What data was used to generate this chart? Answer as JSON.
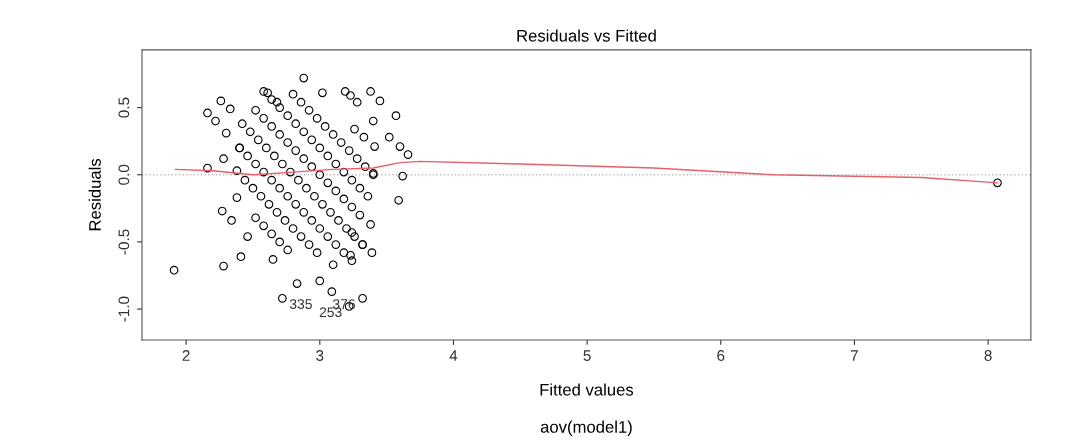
{
  "chart_data": {
    "type": "scatter",
    "title": "Residuals vs Fitted",
    "xlabel": "Fitted values",
    "ylabel": "Residuals",
    "xlim": [
      1.67,
      8.32
    ],
    "ylim": [
      -1.23,
      0.93
    ],
    "xticks": [
      2,
      3,
      4,
      5,
      6,
      7,
      8
    ],
    "yticks": [
      {
        "value": -1.0,
        "label": "-1.0"
      },
      {
        "value": -0.5,
        "label": "-0.5"
      },
      {
        "value": 0.0,
        "label": "0.0"
      },
      {
        "value": 0.5,
        "label": "0.5"
      }
    ],
    "series": [
      {
        "marker": "circle",
        "color": "#000000",
        "x": [
          2.8,
          2.86,
          2.92,
          2.98,
          3.04,
          3.1,
          3.16,
          3.22,
          3.28,
          3.34,
          3.4,
          2.58,
          2.64,
          2.7,
          2.76,
          2.82,
          2.88,
          2.94,
          3.0,
          3.06,
          3.12,
          3.18,
          3.24,
          3.3,
          3.36,
          2.52,
          2.58,
          2.64,
          2.7,
          2.76,
          2.82,
          2.88,
          2.94,
          3.0,
          3.06,
          3.12,
          3.18,
          3.24,
          3.3,
          2.42,
          2.48,
          2.54,
          2.6,
          2.66,
          2.72,
          2.78,
          2.84,
          2.9,
          2.96,
          3.02,
          3.08,
          3.14,
          3.2,
          3.26,
          3.32,
          2.4,
          2.46,
          2.52,
          2.58,
          2.64,
          2.7,
          2.76,
          2.82,
          2.88,
          2.94,
          3.0,
          3.06,
          3.12,
          3.18,
          3.24,
          2.44,
          2.5,
          2.56,
          2.62,
          2.68,
          2.74,
          2.8,
          2.86,
          2.92,
          2.98,
          2.52,
          2.58,
          2.64,
          2.7,
          2.76,
          2.88,
          2.26,
          2.33,
          2.16,
          2.22,
          2.3,
          2.28,
          2.16,
          2.38,
          2.4,
          2.27,
          2.34,
          2.46,
          2.38,
          1.91,
          2.28,
          2.41,
          2.65,
          2.83,
          3.0,
          3.09,
          3.1,
          2.72,
          3.32,
          3.22,
          3.02,
          3.19,
          3.23,
          3.28,
          3.38,
          3.45,
          3.57,
          3.4,
          3.52,
          3.6,
          3.66,
          3.62,
          3.59,
          3.41,
          3.4,
          3.38,
          3.39,
          3.32,
          3.24,
          3.23,
          2.61,
          2.68,
          3.26,
          3.33,
          8.07
        ],
        "values": [
          0.6,
          0.54,
          0.48,
          0.42,
          0.36,
          0.3,
          0.24,
          0.18,
          0.12,
          0.06,
          0.0,
          0.62,
          0.56,
          0.5,
          0.44,
          0.38,
          0.32,
          0.26,
          0.2,
          0.14,
          0.08,
          0.02,
          -0.04,
          -0.1,
          -0.16,
          0.48,
          0.42,
          0.36,
          0.3,
          0.24,
          0.18,
          0.12,
          0.06,
          0.0,
          -0.06,
          -0.12,
          -0.18,
          -0.24,
          -0.3,
          0.38,
          0.32,
          0.26,
          0.2,
          0.14,
          0.08,
          0.02,
          -0.04,
          -0.1,
          -0.16,
          -0.22,
          -0.28,
          -0.34,
          -0.4,
          -0.46,
          -0.52,
          0.2,
          0.14,
          0.08,
          0.02,
          -0.04,
          -0.1,
          -0.16,
          -0.22,
          -0.28,
          -0.34,
          -0.4,
          -0.46,
          -0.52,
          -0.58,
          -0.64,
          -0.04,
          -0.1,
          -0.16,
          -0.22,
          -0.28,
          -0.34,
          -0.4,
          -0.46,
          -0.52,
          -0.58,
          -0.32,
          -0.38,
          -0.44,
          -0.5,
          -0.56,
          0.72,
          0.55,
          0.49,
          0.46,
          0.4,
          0.31,
          0.12,
          0.05,
          0.03,
          0.2,
          -0.27,
          -0.34,
          -0.46,
          -0.17,
          -0.71,
          -0.68,
          -0.61,
          -0.63,
          -0.81,
          -0.79,
          -0.87,
          -0.67,
          -0.92,
          -0.92,
          -0.98,
          0.61,
          0.62,
          0.59,
          0.54,
          0.62,
          0.55,
          0.44,
          0.4,
          0.28,
          0.21,
          0.15,
          -0.01,
          -0.19,
          0.21,
          0.01,
          -0.37,
          -0.58,
          -0.52,
          -0.43,
          -0.6,
          0.61,
          0.54,
          0.34,
          0.28,
          -0.06
        ]
      },
      {
        "type": "line",
        "marker": "none",
        "color": "#e8606a",
        "x": [
          1.92,
          2.2,
          2.5,
          2.8,
          3.1,
          3.4,
          3.6,
          3.75,
          4.5,
          5.5,
          6.4,
          7.5,
          8.07
        ],
        "values": [
          0.04,
          0.03,
          0.0,
          0.02,
          0.04,
          0.05,
          0.09,
          0.1,
          0.08,
          0.05,
          0.0,
          -0.02,
          -0.06
        ]
      }
    ],
    "ref_lines": [
      {
        "axis": "y",
        "value": 0,
        "color": "#bbbbbb",
        "line_style": "dotted"
      }
    ],
    "annotations": [
      {
        "text": "335",
        "x": 2.72,
        "y": -0.92
      },
      {
        "text": "376",
        "x": 3.32,
        "y": -0.92
      },
      {
        "text": "253",
        "x": 3.22,
        "y": -0.98
      },
      "aov(model1)"
    ]
  }
}
